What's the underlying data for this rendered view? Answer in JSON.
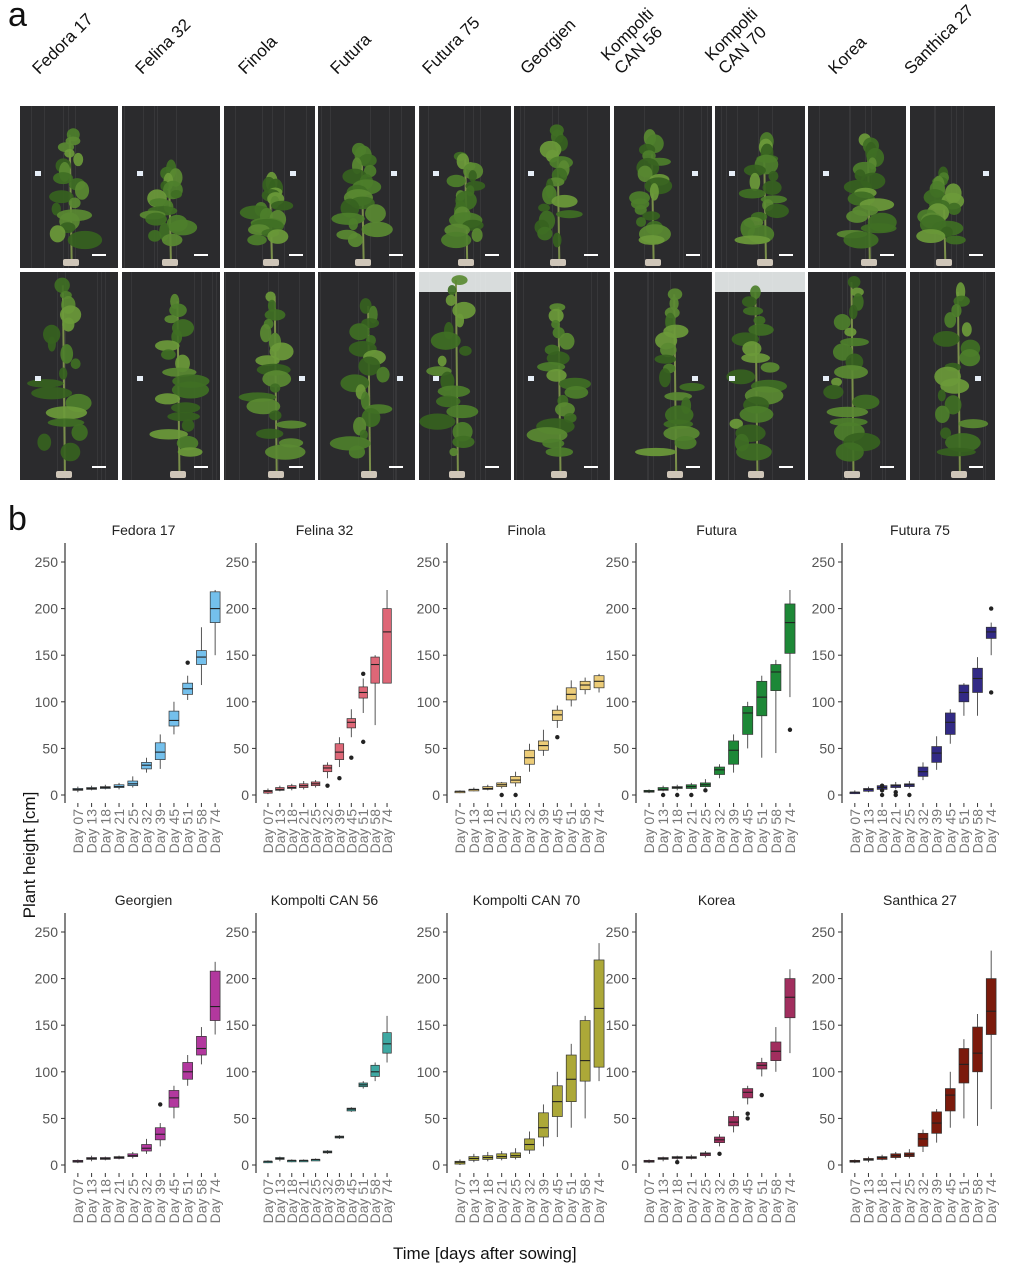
{
  "panel_a": {
    "letter": "a",
    "varieties": [
      "Fedora 17",
      "Felina 32",
      "Finola",
      "Futura",
      "Futura 75",
      "Georgien",
      "Kompolti\nCAN 56",
      "Kompolti\nCAN 70",
      "Korea",
      "Santhica 27"
    ],
    "photo_rows": 2
  },
  "panel_b": {
    "letter": "b",
    "ylabel": "Plant height [cm]",
    "xlabel": "Time [days after sowing]"
  },
  "chart_data": {
    "type": "boxplot",
    "categories": [
      "Day 07",
      "Day 13",
      "Day 18",
      "Day 21",
      "Day 25",
      "Day 32",
      "Day 39",
      "Day 45",
      "Day 51",
      "Day 58",
      "Day 74"
    ],
    "ylim": [
      0,
      250
    ],
    "yticks": [
      0,
      50,
      100,
      150,
      200,
      250
    ],
    "grid": false,
    "legend": "none",
    "facets": [
      {
        "name": "Fedora 17",
        "color": "#74c0ec",
        "boxes": [
          [
            3,
            5,
            6,
            7,
            9
          ],
          [
            5,
            6,
            7,
            8,
            10
          ],
          [
            6,
            7,
            8,
            9,
            11
          ],
          [
            6,
            8,
            9,
            11,
            13
          ],
          [
            8,
            10,
            12,
            15,
            20
          ],
          [
            24,
            28,
            32,
            35,
            40
          ],
          [
            28,
            38,
            46,
            56,
            65
          ],
          [
            65,
            74,
            80,
            90,
            100
          ],
          [
            102,
            108,
            114,
            120,
            128
          ],
          [
            118,
            140,
            148,
            155,
            180
          ],
          [
            150,
            185,
            200,
            218,
            220
          ]
        ],
        "outliers": [
          [],
          [],
          [],
          [],
          [],
          [],
          [],
          [],
          [
            142
          ],
          [],
          []
        ]
      },
      {
        "name": "Felina 32",
        "color": "#de6777",
        "boxes": [
          [
            1,
            2,
            4,
            5,
            7
          ],
          [
            4,
            5,
            6,
            8,
            10
          ],
          [
            5,
            7,
            8,
            10,
            12
          ],
          [
            6,
            8,
            10,
            12,
            15
          ],
          [
            8,
            10,
            12,
            14,
            16
          ],
          [
            18,
            25,
            29,
            32,
            35
          ],
          [
            30,
            38,
            46,
            55,
            62
          ],
          [
            62,
            72,
            78,
            82,
            92
          ],
          [
            88,
            104,
            110,
            116,
            125
          ],
          [
            75,
            120,
            140,
            148,
            150
          ],
          [
            120,
            120,
            175,
            200,
            220
          ]
        ],
        "outliers": [
          [],
          [],
          [],
          [],
          [],
          [
            10
          ],
          [
            18
          ],
          [
            40
          ],
          [
            57,
            130
          ],
          [],
          []
        ]
      },
      {
        "name": "Finola",
        "color": "#eccc78",
        "boxes": [
          [
            2,
            3,
            4,
            4,
            5
          ],
          [
            4,
            5,
            6,
            6,
            8
          ],
          [
            5,
            6,
            7,
            9,
            11
          ],
          [
            7,
            9,
            11,
            13,
            14
          ],
          [
            9,
            13,
            16,
            20,
            25
          ],
          [
            25,
            33,
            40,
            48,
            55
          ],
          [
            42,
            48,
            53,
            58,
            70
          ],
          [
            72,
            80,
            86,
            91,
            96
          ],
          [
            95,
            102,
            108,
            115,
            123
          ],
          [
            108,
            113,
            118,
            122,
            126
          ],
          [
            110,
            115,
            122,
            128,
            130
          ]
        ],
        "outliers": [
          [],
          [],
          [],
          [
            0
          ],
          [
            0
          ],
          [],
          [],
          [
            62
          ],
          [],
          [],
          []
        ]
      },
      {
        "name": "Futura",
        "color": "#1d8837",
        "boxes": [
          [
            2,
            3,
            4,
            5,
            6
          ],
          [
            4,
            5,
            6,
            8,
            10
          ],
          [
            5,
            7,
            8,
            9,
            11
          ],
          [
            6,
            7,
            9,
            11,
            13
          ],
          [
            8,
            9,
            11,
            13,
            17
          ],
          [
            18,
            22,
            27,
            30,
            33
          ],
          [
            24,
            33,
            48,
            58,
            65
          ],
          [
            50,
            65,
            88,
            95,
            100
          ],
          [
            40,
            85,
            105,
            122,
            128
          ],
          [
            45,
            112,
            132,
            140,
            145
          ],
          [
            105,
            152,
            185,
            205,
            220
          ]
        ],
        "outliers": [
          [],
          [
            0
          ],
          [
            0
          ],
          [
            0
          ],
          [
            5
          ],
          [],
          [],
          [],
          [],
          [],
          [
            70
          ]
        ]
      },
      {
        "name": "Futura 75",
        "color": "#322a85",
        "boxes": [
          [
            1,
            2,
            3,
            3,
            5
          ],
          [
            3,
            4,
            6,
            7,
            9
          ],
          [
            5,
            6,
            8,
            10,
            12
          ],
          [
            6,
            8,
            10,
            11,
            14
          ],
          [
            7,
            9,
            11,
            12,
            15
          ],
          [
            16,
            20,
            25,
            30,
            35
          ],
          [
            27,
            35,
            45,
            52,
            63
          ],
          [
            55,
            65,
            78,
            88,
            92
          ],
          [
            85,
            100,
            110,
            118,
            120
          ],
          [
            85,
            110,
            125,
            136,
            148
          ],
          [
            150,
            168,
            175,
            180,
            185
          ]
        ],
        "outliers": [
          [],
          [],
          [
            0,
            5,
            10
          ],
          [
            0,
            3
          ],
          [
            0
          ],
          [],
          [],
          [],
          [],
          [],
          [
            110,
            200
          ]
        ]
      },
      {
        "name": "Georgien",
        "color": "#b2389e",
        "boxes": [
          [
            2,
            3,
            4,
            5,
            6
          ],
          [
            4,
            6,
            7,
            8,
            10
          ],
          [
            5,
            6,
            7,
            8,
            9
          ],
          [
            6,
            7,
            8,
            9,
            10
          ],
          [
            7,
            9,
            10,
            12,
            14
          ],
          [
            12,
            15,
            18,
            22,
            28
          ],
          [
            20,
            27,
            33,
            40,
            45
          ],
          [
            50,
            62,
            72,
            80,
            85
          ],
          [
            85,
            92,
            100,
            110,
            118
          ],
          [
            108,
            118,
            125,
            138,
            148
          ],
          [
            140,
            155,
            170,
            208,
            218
          ]
        ],
        "outliers": [
          [],
          [],
          [],
          [],
          [],
          [],
          [
            65
          ],
          [],
          [],
          [],
          []
        ]
      },
      {
        "name": "Kompolti CAN 56",
        "color": "#3ea8a2",
        "boxes": [
          [
            2,
            3,
            4,
            4,
            5
          ],
          [
            4,
            6,
            7,
            8,
            9
          ],
          [
            3,
            4,
            5,
            5,
            6
          ],
          [
            4,
            4,
            5,
            5,
            6
          ],
          [
            5,
            5,
            6,
            6,
            7
          ],
          [
            12,
            13,
            14,
            15,
            16
          ],
          [
            28,
            29,
            30,
            31,
            32
          ],
          [
            57,
            58,
            60,
            61,
            62
          ],
          [
            82,
            84,
            86,
            88,
            90
          ],
          [
            90,
            95,
            100,
            107,
            110
          ],
          [
            110,
            120,
            130,
            142,
            160
          ]
        ],
        "outliers": [
          [],
          [],
          [],
          [],
          [],
          [],
          [],
          [],
          [],
          [],
          []
        ]
      },
      {
        "name": "Kompolti CAN 70",
        "color": "#aca838",
        "boxes": [
          [
            0,
            1,
            3,
            4,
            6
          ],
          [
            3,
            5,
            7,
            9,
            12
          ],
          [
            4,
            6,
            8,
            10,
            14
          ],
          [
            5,
            7,
            9,
            12,
            15
          ],
          [
            6,
            8,
            10,
            13,
            18
          ],
          [
            12,
            16,
            22,
            28,
            36
          ],
          [
            20,
            30,
            40,
            56,
            65
          ],
          [
            30,
            52,
            68,
            85,
            100
          ],
          [
            40,
            68,
            92,
            118,
            130
          ],
          [
            50,
            90,
            112,
            155,
            160
          ],
          [
            90,
            105,
            168,
            220,
            238
          ]
        ],
        "outliers": [
          [],
          [],
          [],
          [],
          [],
          [],
          [],
          [],
          [],
          [],
          []
        ]
      },
      {
        "name": "Korea",
        "color": "#a12e5e",
        "boxes": [
          [
            2,
            3,
            4,
            5,
            6
          ],
          [
            4,
            6,
            7,
            8,
            9
          ],
          [
            5,
            7,
            8,
            9,
            10
          ],
          [
            6,
            7,
            8,
            9,
            11
          ],
          [
            8,
            10,
            12,
            13,
            15
          ],
          [
            20,
            24,
            27,
            30,
            33
          ],
          [
            35,
            42,
            46,
            52,
            58
          ],
          [
            65,
            72,
            78,
            82,
            85
          ],
          [
            95,
            103,
            107,
            110,
            115
          ],
          [
            100,
            112,
            122,
            132,
            148
          ],
          [
            120,
            158,
            180,
            200,
            210
          ]
        ],
        "outliers": [
          [],
          [],
          [
            3
          ],
          [],
          [],
          [
            12
          ],
          [],
          [
            50,
            55
          ],
          [
            75
          ],
          [],
          []
        ]
      },
      {
        "name": "Santhica 27",
        "color": "#7b1a0c",
        "boxes": [
          [
            2,
            3,
            4,
            5,
            6
          ],
          [
            3,
            5,
            6,
            7,
            9
          ],
          [
            5,
            6,
            8,
            9,
            11
          ],
          [
            6,
            8,
            10,
            12,
            14
          ],
          [
            7,
            9,
            11,
            13,
            17
          ],
          [
            14,
            20,
            28,
            34,
            38
          ],
          [
            24,
            34,
            45,
            57,
            60
          ],
          [
            40,
            58,
            75,
            82,
            100
          ],
          [
            50,
            88,
            108,
            125,
            135
          ],
          [
            42,
            100,
            120,
            148,
            162
          ],
          [
            60,
            140,
            165,
            200,
            230
          ]
        ],
        "outliers": [
          [],
          [],
          [],
          [],
          [],
          [],
          [],
          [],
          [],
          [],
          []
        ]
      }
    ]
  }
}
